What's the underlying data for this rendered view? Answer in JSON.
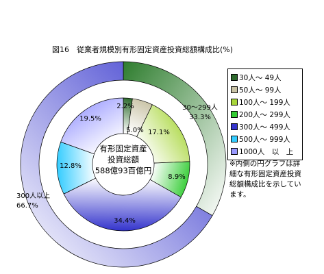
{
  "title": "図16　従業者規模別有形固定資産投資総額構成比(%)",
  "center_label": {
    "line1": "有形固定資産",
    "line2": "投資総額",
    "line3": "588億93百億円"
  },
  "note": "※内側の円グラフは詳細な有形固定資産投資総額構成比を示しています。",
  "legend": [
    {
      "label": "30人～ 49人",
      "color": "#2e6b2e"
    },
    {
      "label": "50人～ 99人",
      "color": "#c9c3a6"
    },
    {
      "label": "100人～ 199人",
      "color": "#a8d63a"
    },
    {
      "label": "200人～ 299人",
      "color": "#33cc33"
    },
    {
      "label": "300人～ 499人",
      "color": "#3333cc"
    },
    {
      "label": "500人～ 999人",
      "color": "#33ccff"
    },
    {
      "label": "1000人　以　上",
      "color": "#9999ff"
    }
  ],
  "chart_data": {
    "type": "pie",
    "title": "図16　従業者規模別有形固定資産投資総額構成比(%)",
    "outer_ring": [
      {
        "name": "30～299人",
        "value": 33.3,
        "label": "30～299人\n33.3%",
        "color": "#2e7d2e"
      },
      {
        "name": "300人以上",
        "value": 66.7,
        "label": "300人以上\n66.7%",
        "color": "#3333cc"
      }
    ],
    "inner_ring": [
      {
        "name": "30人～ 49人",
        "value": 2.2,
        "label": "2.2%",
        "color": "#2e6b2e"
      },
      {
        "name": "50人～ 99人",
        "value": 5.0,
        "label": "5.0%",
        "color": "#c9c3a6"
      },
      {
        "name": "100人～ 199人",
        "value": 17.1,
        "label": "17.1%",
        "color": "#a8d63a"
      },
      {
        "name": "200人～ 299人",
        "value": 8.9,
        "label": "8.9%",
        "color": "#33cc33"
      },
      {
        "name": "300人～ 499人",
        "value": 34.4,
        "label": "34.4%",
        "color": "#3333cc"
      },
      {
        "name": "500人～ 999人",
        "value": 12.8,
        "label": "12.8%",
        "color": "#33ccff"
      },
      {
        "name": "1000人　以　上",
        "value": 19.5,
        "label": "19.5%",
        "color": "#9999ff"
      }
    ],
    "legend_position": "right"
  }
}
